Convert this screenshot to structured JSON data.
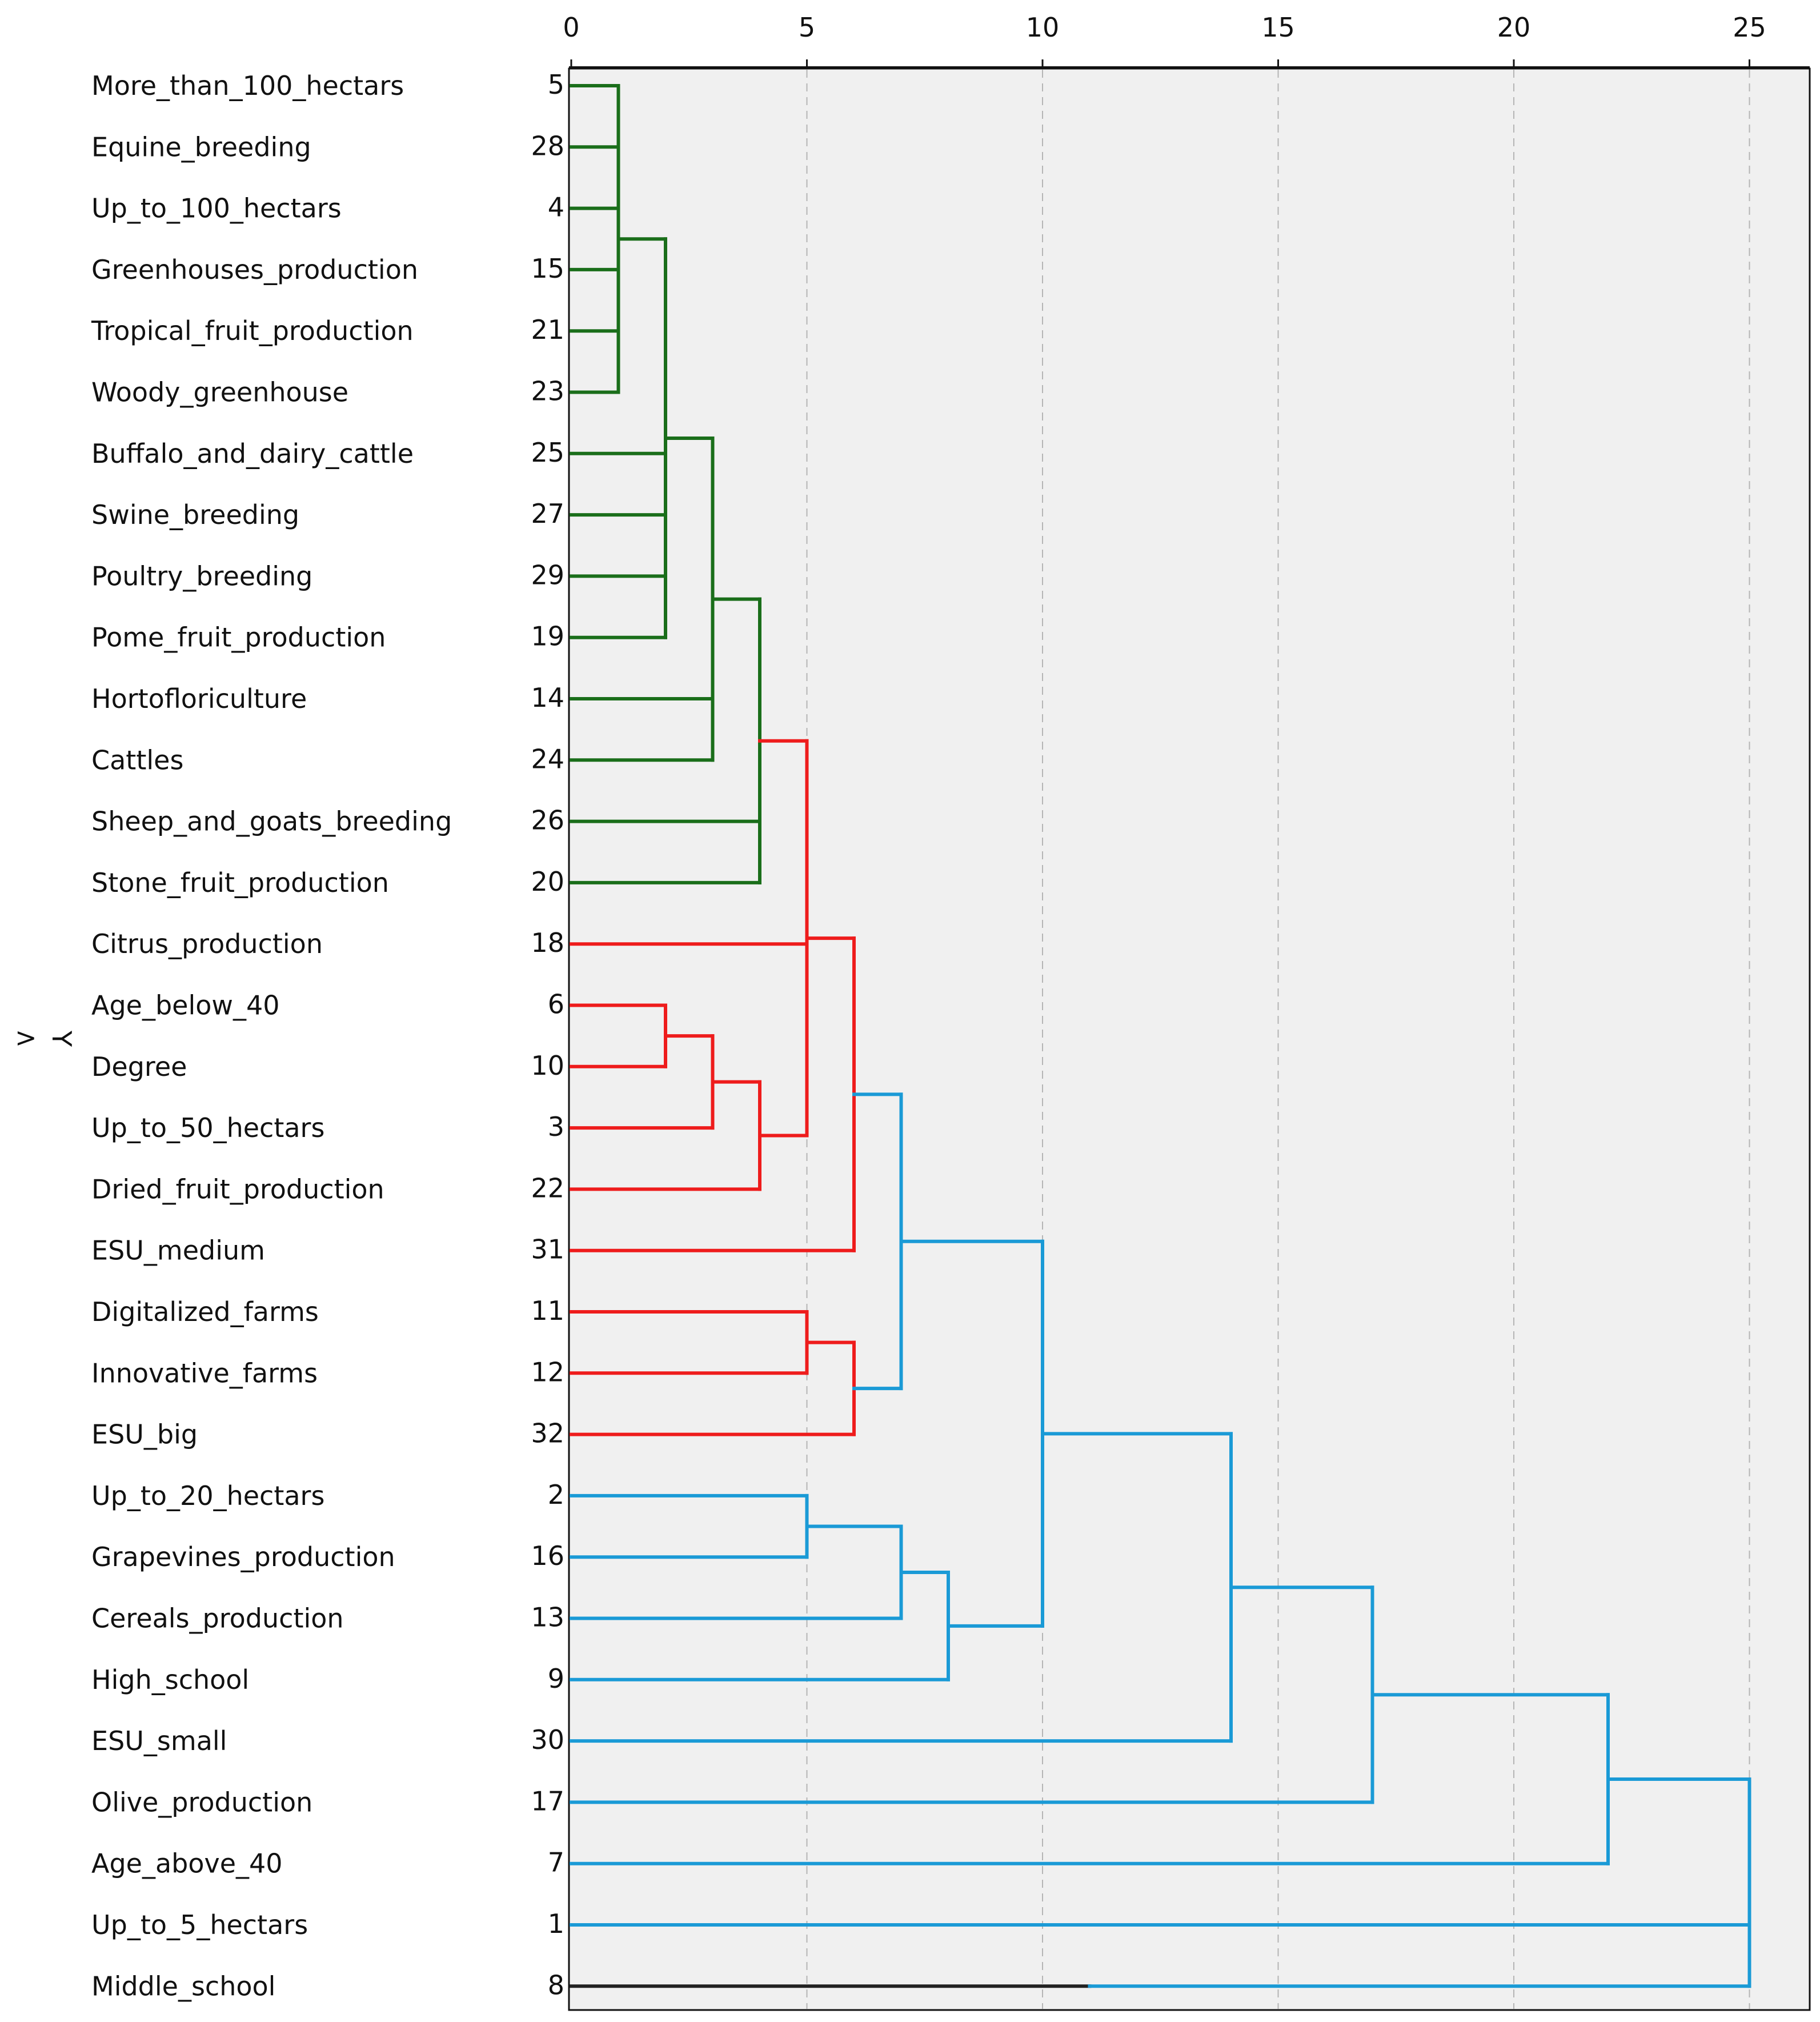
{
  "chart_data": {
    "type": "dendrogram",
    "title": "",
    "ylabel": "Y",
    "y_marker": ">",
    "x_ticks": [
      0,
      5,
      10,
      15,
      20,
      25
    ],
    "xlim": [
      0,
      26.3
    ],
    "grid": "vertical dashed at each tick",
    "leaves": [
      {
        "label": "More_than_100_hectars",
        "id": "5"
      },
      {
        "label": "Equine_breeding",
        "id": "28"
      },
      {
        "label": "Up_to_100_hectars",
        "id": "4"
      },
      {
        "label": "Greenhouses_production",
        "id": "15"
      },
      {
        "label": "Tropical_fruit_production",
        "id": "21"
      },
      {
        "label": "Woody_greenhouse",
        "id": "23"
      },
      {
        "label": "Buffalo_and_dairy_cattle",
        "id": "25"
      },
      {
        "label": "Swine_breeding",
        "id": "27"
      },
      {
        "label": "Poultry_breeding",
        "id": "29"
      },
      {
        "label": "Pome_fruit_production",
        "id": "19"
      },
      {
        "label": "Hortofloriculture",
        "id": "14"
      },
      {
        "label": "Cattles",
        "id": "24"
      },
      {
        "label": "Sheep_and_goats_breeding",
        "id": "26"
      },
      {
        "label": "Stone_fruit_production",
        "id": "20"
      },
      {
        "label": "Citrus_production",
        "id": "18"
      },
      {
        "label": "Age_below_40",
        "id": "6"
      },
      {
        "label": "Degree",
        "id": "10"
      },
      {
        "label": "Up_to_50_hectars",
        "id": "3"
      },
      {
        "label": "Dried_fruit_production",
        "id": "22"
      },
      {
        "label": "ESU_medium",
        "id": "31"
      },
      {
        "label": "Digitalized_farms",
        "id": "11"
      },
      {
        "label": "Innovative_farms",
        "id": "12"
      },
      {
        "label": "ESU_big",
        "id": "32"
      },
      {
        "label": "Up_to_20_hectars",
        "id": "2"
      },
      {
        "label": "Grapevines_production",
        "id": "16"
      },
      {
        "label": "Cereals_production",
        "id": "13"
      },
      {
        "label": "High_school",
        "id": "9"
      },
      {
        "label": "ESU_small",
        "id": "30"
      },
      {
        "label": "Olive_production",
        "id": "17"
      },
      {
        "label": "Age_above_40",
        "id": "7"
      },
      {
        "label": "Up_to_5_hectars",
        "id": "1"
      },
      {
        "label": "Middle_school",
        "id": "8"
      }
    ],
    "merges": [
      {
        "children": [
          0,
          1,
          2,
          3,
          4,
          5
        ],
        "height": 1,
        "color": "#1a6e1a"
      },
      {
        "children": [
          "m0",
          6,
          7,
          8,
          9
        ],
        "height": 2,
        "color": "#1a6e1a"
      },
      {
        "children": [
          "m1",
          10,
          11
        ],
        "height": 3,
        "color": "#1a6e1a"
      },
      {
        "children": [
          "m2",
          12,
          13
        ],
        "height": 4,
        "color": "#1a6e1a"
      },
      {
        "children": [
          15,
          16
        ],
        "height": 2,
        "color": "#ee1c1c"
      },
      {
        "children": [
          "m4",
          17
        ],
        "height": 3,
        "color": "#ee1c1c"
      },
      {
        "children": [
          "m5",
          18
        ],
        "height": 4,
        "color": "#ee1c1c"
      },
      {
        "children": [
          "m3",
          14,
          "m6"
        ],
        "height": 5,
        "color": "#ee1c1c"
      },
      {
        "children": [
          "m7",
          19
        ],
        "height": 6,
        "color": "#ee1c1c"
      },
      {
        "children": [
          20,
          21
        ],
        "height": 5,
        "color": "#ee1c1c"
      },
      {
        "children": [
          "m9",
          22
        ],
        "height": 6,
        "color": "#ee1c1c"
      },
      {
        "children": [
          "m8",
          "m10"
        ],
        "height": 7,
        "color": "#1a9ad6"
      },
      {
        "children": [
          23,
          24
        ],
        "height": 5,
        "color": "#1a9ad6"
      },
      {
        "children": [
          "m12",
          25
        ],
        "height": 7,
        "color": "#1a9ad6"
      },
      {
        "children": [
          "m13",
          26
        ],
        "height": 8,
        "color": "#1a9ad6"
      },
      {
        "children": [
          "m11",
          "m14"
        ],
        "height": 10,
        "color": "#1a9ad6"
      },
      {
        "children": [
          "m15",
          27
        ],
        "height": 14,
        "color": "#1a9ad6"
      },
      {
        "children": [
          "m16",
          28
        ],
        "height": 17,
        "color": "#1a9ad6"
      },
      {
        "children": [
          "m17",
          29
        ],
        "height": 22,
        "color": "#1a9ad6"
      },
      {
        "children": [
          31
        ],
        "height": 11,
        "color": "#222222"
      },
      {
        "children": [
          "m18",
          30,
          "m19"
        ],
        "height": 25,
        "color": "#1a9ad6"
      }
    ],
    "links": [
      {
        "from": "m10",
        "to": "m11",
        "color": "#222222"
      },
      {
        "from": "m13",
        "to": "m14",
        "color": "#222222"
      },
      {
        "from": "m14",
        "to": "m15",
        "color": "#222222"
      },
      {
        "from": "m15",
        "to": "m16",
        "color": "#222222"
      },
      {
        "from": "m16",
        "to": "m17",
        "color": "#222222"
      },
      {
        "from": "m8",
        "to": "m11",
        "color": "#222222"
      }
    ]
  }
}
